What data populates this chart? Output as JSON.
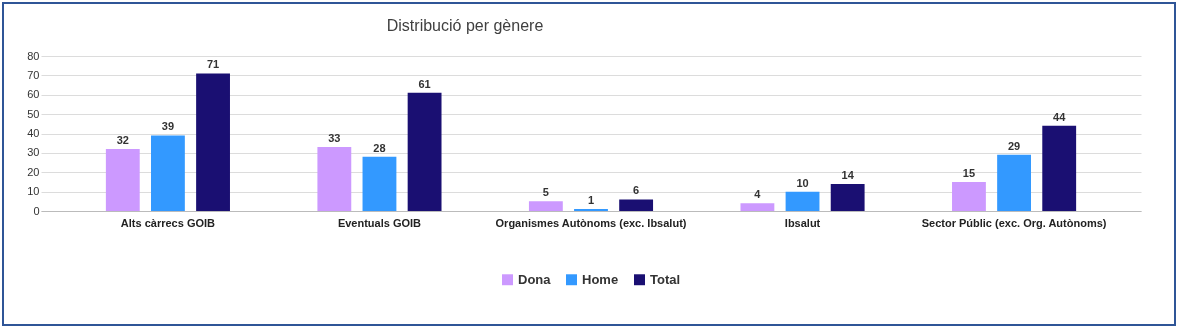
{
  "chart_data": {
    "type": "bar",
    "title": "Distribució per gènere",
    "categories": [
      "Alts càrrecs GOIB",
      "Eventuals GOIB",
      "Organismes Autònoms (exc. Ibsalut)",
      "Ibsalut",
      "Sector Públic (exc. Org. Autònoms)"
    ],
    "series": [
      {
        "name": "Dona",
        "color": "#cc99ff",
        "values": [
          32,
          33,
          5,
          4,
          15
        ]
      },
      {
        "name": "Home",
        "color": "#3399ff",
        "values": [
          39,
          28,
          1,
          10,
          29
        ]
      },
      {
        "name": "Total",
        "color": "#1a0f72",
        "values": [
          71,
          61,
          6,
          14,
          44
        ]
      }
    ],
    "ylim": [
      0,
      80
    ],
    "yticks": [
      0,
      10,
      20,
      30,
      40,
      50,
      60,
      70,
      80
    ],
    "grid": "y",
    "legend": "bottom",
    "data_labels": true
  }
}
